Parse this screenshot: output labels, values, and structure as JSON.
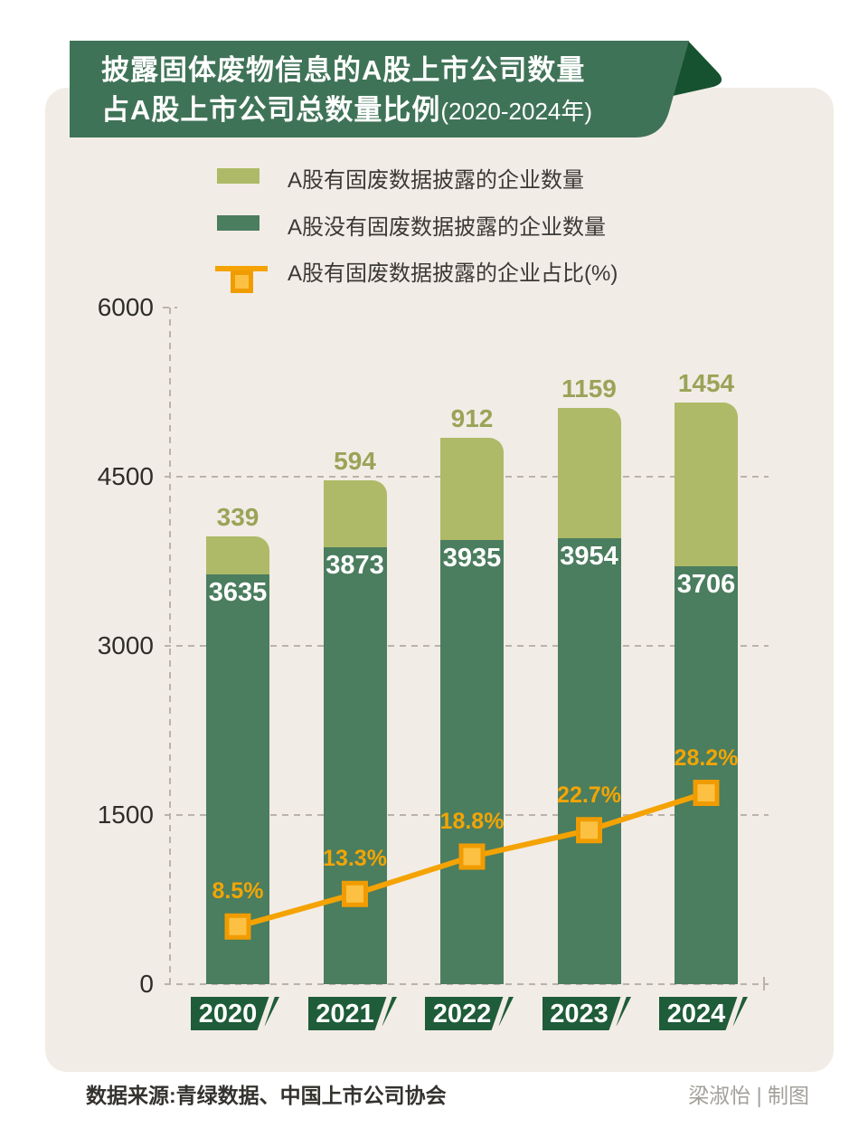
{
  "title": {
    "line1": "披露固体废物信息的A股上市公司数量",
    "line2": "占A股上市公司总数量比例",
    "line2_suffix": "(2020-2024年)"
  },
  "legend": {
    "items": [
      {
        "label": "A股有固废数据披露的企业数量",
        "swatch": "light-green-square"
      },
      {
        "label": "A股没有固废数据披露的企业数量",
        "swatch": "dark-green-square"
      },
      {
        "label": "A股有固废数据披露的企业占比(%)",
        "swatch": "orange-line-with-square-marker"
      }
    ]
  },
  "chart_data": {
    "type": "bar",
    "stacked": true,
    "categories": [
      "2020",
      "2021",
      "2022",
      "2023",
      "2024"
    ],
    "series": [
      {
        "name": "A股没有固废数据披露的企业数量",
        "role": "base-segment",
        "color": "#4b7d5f",
        "values": [
          3635,
          3873,
          3935,
          3954,
          3706
        ]
      },
      {
        "name": "A股有固废数据披露的企业数量",
        "role": "top-segment",
        "color": "#aeba67",
        "values": [
          339,
          594,
          912,
          1159,
          1454
        ]
      }
    ],
    "line_series": {
      "name": "A股有固废数据披露的企业占比(%)",
      "color": "#f4a303",
      "marker_fill": "#fcc143",
      "marker_stroke": "#f09c00",
      "values_pct": [
        8.5,
        13.3,
        18.8,
        22.7,
        28.2
      ],
      "labels": [
        "8.5%",
        "13.3%",
        "18.8%",
        "22.7%",
        "28.2%"
      ]
    },
    "yticks": [
      0,
      1500,
      3000,
      4500,
      6000
    ],
    "ylim": [
      0,
      6000
    ],
    "grid": "dashed horizontal gridlines at 0/1500/3000/4500, dashed vertical left axis, short tick at 6000",
    "legend_position": "top"
  },
  "footer": {
    "source": "数据来源:青绿数据、中国上市公司协会",
    "credit": "梁淑怡 | 制图"
  },
  "colors": {
    "page_bg": "#ffffff",
    "card_bg": "#f2ece6",
    "banner_green": "#3f7357",
    "banner_fold": "#16522f",
    "bar_dark_green": "#4b7d5f",
    "bar_light_green": "#aeba67",
    "value_label_olive": "#9aa458",
    "year_tag_green": "#1f5c39",
    "line_orange": "#f4a303",
    "pct_label_orange": "#f2a505",
    "axis_text": "#2e2d2a",
    "dash_gray": "#b9b3aa"
  }
}
